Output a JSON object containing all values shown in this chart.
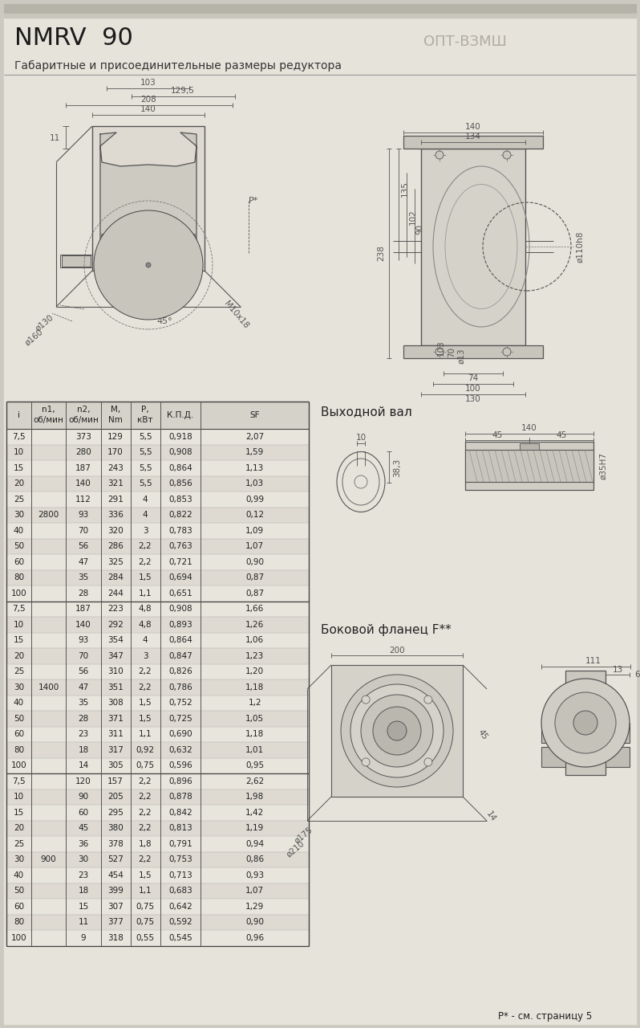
{
  "title": "NMRV  90",
  "subtitle": "Габаритные и присоединительные размеры редуктора",
  "watermark": "ОПТ-ВЗМШ",
  "table_groups": [
    {
      "n1": "2800",
      "rows": [
        [
          "7,5",
          "",
          "373",
          "129",
          "5,5",
          "0,918",
          "2,07"
        ],
        [
          "10",
          "",
          "280",
          "170",
          "5,5",
          "0,908",
          "1,59"
        ],
        [
          "15",
          "",
          "187",
          "243",
          "5,5",
          "0,864",
          "1,13"
        ],
        [
          "20",
          "",
          "140",
          "321",
          "5,5",
          "0,856",
          "1,03"
        ],
        [
          "25",
          "",
          "112",
          "291",
          "4",
          "0,853",
          "0,99"
        ],
        [
          "30",
          "2800",
          "93",
          "336",
          "4",
          "0,822",
          "0,12"
        ],
        [
          "40",
          "",
          "70",
          "320",
          "3",
          "0,783",
          "1,09"
        ],
        [
          "50",
          "",
          "56",
          "286",
          "2,2",
          "0,763",
          "1,07"
        ],
        [
          "60",
          "",
          "47",
          "325",
          "2,2",
          "0,721",
          "0,90"
        ],
        [
          "80",
          "",
          "35",
          "284",
          "1,5",
          "0,694",
          "0,87"
        ],
        [
          "100",
          "",
          "28",
          "244",
          "1,1",
          "0,651",
          "0,87"
        ]
      ]
    },
    {
      "n1": "1400",
      "rows": [
        [
          "7,5",
          "",
          "187",
          "223",
          "4,8",
          "0,908",
          "1,66"
        ],
        [
          "10",
          "",
          "140",
          "292",
          "4,8",
          "0,893",
          "1,26"
        ],
        [
          "15",
          "",
          "93",
          "354",
          "4",
          "0,864",
          "1,06"
        ],
        [
          "20",
          "",
          "70",
          "347",
          "3",
          "0,847",
          "1,23"
        ],
        [
          "25",
          "",
          "56",
          "310",
          "2,2",
          "0,826",
          "1,20"
        ],
        [
          "30",
          "1400",
          "47",
          "351",
          "2,2",
          "0,786",
          "1,18"
        ],
        [
          "40",
          "",
          "35",
          "308",
          "1,5",
          "0,752",
          "1,2"
        ],
        [
          "50",
          "",
          "28",
          "371",
          "1,5",
          "0,725",
          "1,05"
        ],
        [
          "60",
          "",
          "23",
          "311",
          "1,1",
          "0,690",
          "1,18"
        ],
        [
          "80",
          "",
          "18",
          "317",
          "0,92",
          "0,632",
          "1,01"
        ],
        [
          "100",
          "",
          "14",
          "305",
          "0,75",
          "0,596",
          "0,95"
        ]
      ]
    },
    {
      "n1": "900",
      "rows": [
        [
          "7,5",
          "",
          "120",
          "157",
          "2,2",
          "0,896",
          "2,62"
        ],
        [
          "10",
          "",
          "90",
          "205",
          "2,2",
          "0,878",
          "1,98"
        ],
        [
          "15",
          "",
          "60",
          "295",
          "2,2",
          "0,842",
          "1,42"
        ],
        [
          "20",
          "",
          "45",
          "380",
          "2,2",
          "0,813",
          "1,19"
        ],
        [
          "25",
          "",
          "36",
          "378",
          "1,8",
          "0,791",
          "0,94"
        ],
        [
          "30",
          "900",
          "30",
          "527",
          "2,2",
          "0,753",
          "0,86"
        ],
        [
          "40",
          "",
          "23",
          "454",
          "1,5",
          "0,713",
          "0,93"
        ],
        [
          "50",
          "",
          "18",
          "399",
          "1,1",
          "0,683",
          "1,07"
        ],
        [
          "60",
          "",
          "15",
          "307",
          "0,75",
          "0,642",
          "1,29"
        ],
        [
          "80",
          "",
          "11",
          "377",
          "0,75",
          "0,592",
          "0,90"
        ],
        [
          "100",
          "",
          "9",
          "318",
          "0,55",
          "0,545",
          "0,96"
        ]
      ]
    }
  ],
  "footnote": "Р* - см. страницу 5"
}
